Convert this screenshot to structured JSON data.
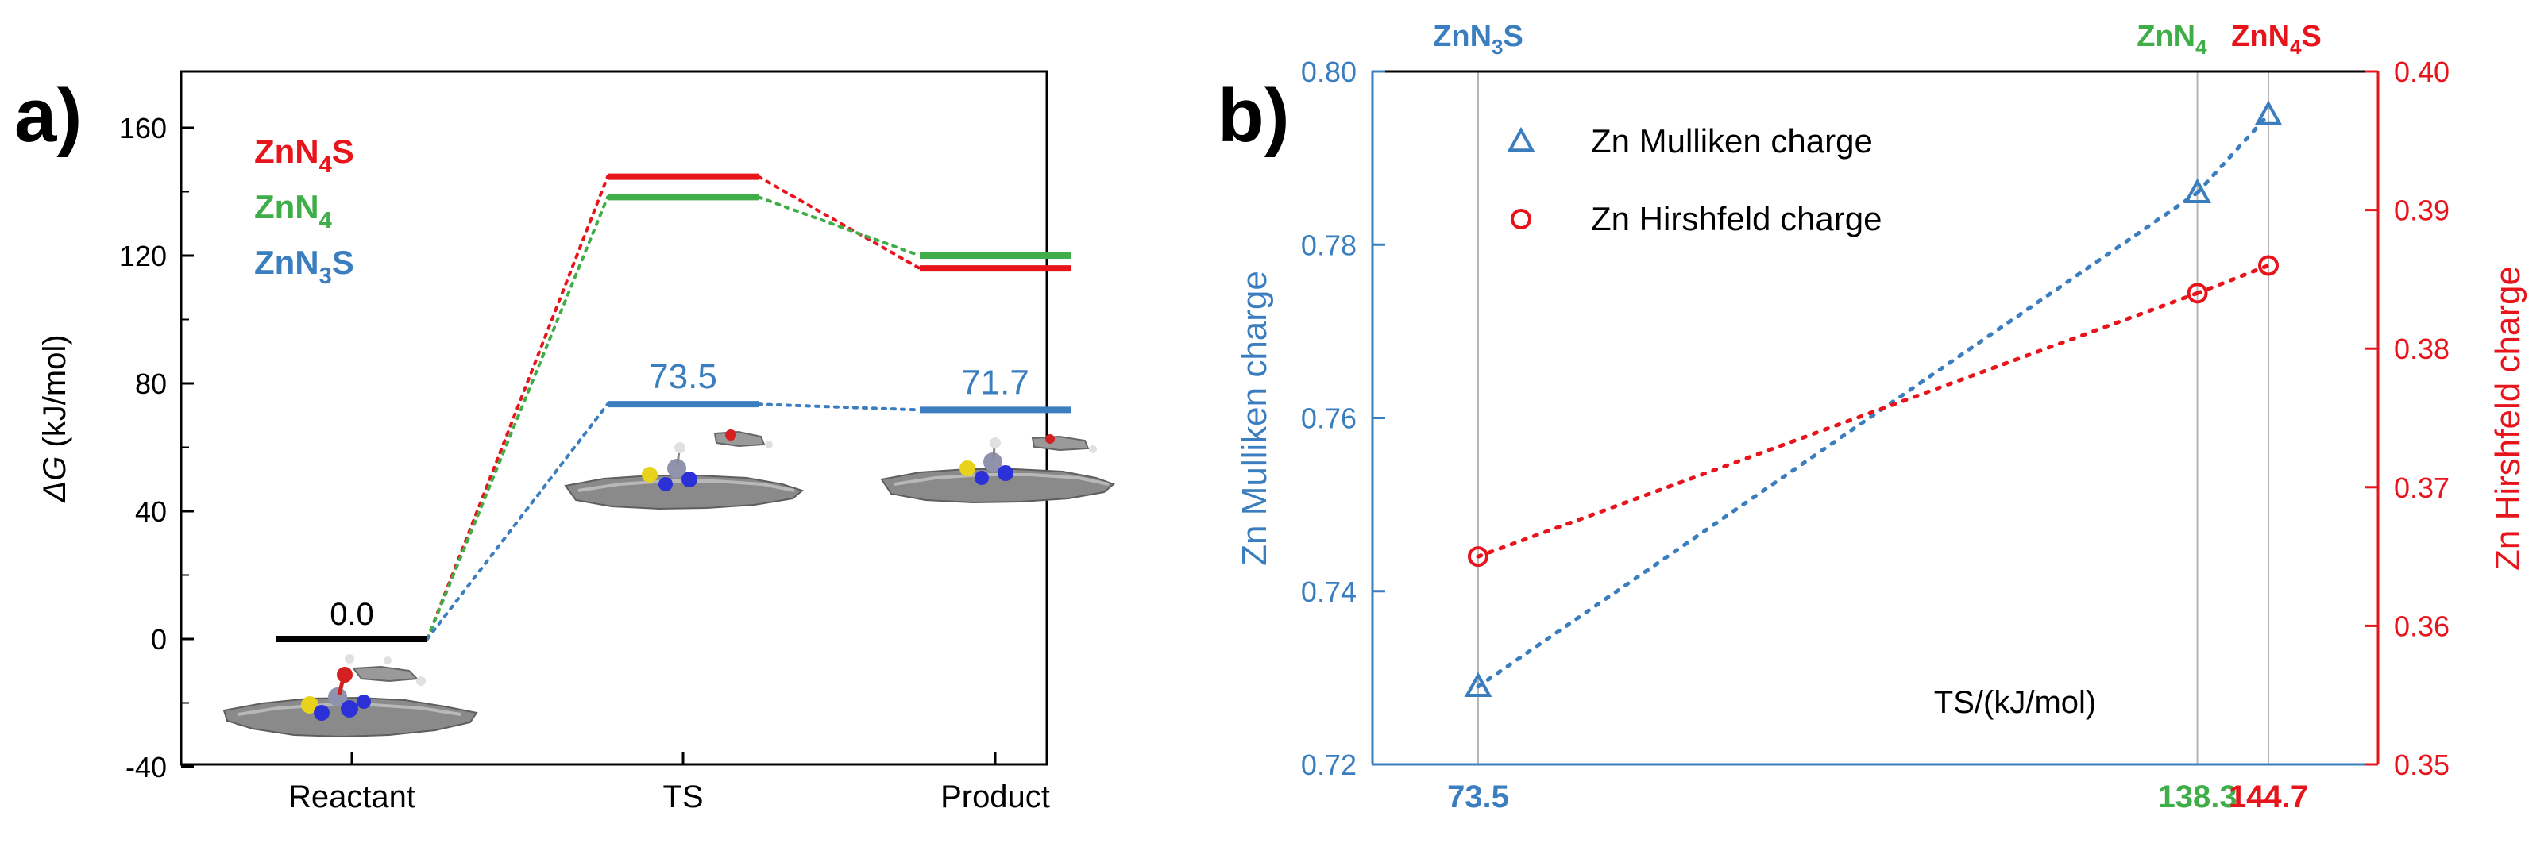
{
  "chart_data": [
    {
      "panel": "a)",
      "type": "line",
      "title": "",
      "xlabel": "",
      "ylabel_italic": "ΔG",
      "ylabel_units": " (kJ/mol)",
      "categories": [
        "Reactant",
        "TS",
        "Product"
      ],
      "ylim": [
        -40,
        180
      ],
      "yticks": [
        -40,
        0,
        40,
        80,
        120,
        160
      ],
      "series": [
        {
          "name": "ZnN4S",
          "label_main": "ZnN",
          "label_sub1": "4",
          "label_rest": "S",
          "color": "#e8141c",
          "values": [
            0,
            144.7,
            116
          ]
        },
        {
          "name": "ZnN4",
          "label_main": "ZnN",
          "label_sub1": "4",
          "label_rest": "",
          "color": "#3fae49",
          "values": [
            0,
            138.3,
            120
          ]
        },
        {
          "name": "ZnN3S",
          "label_main": "ZnN",
          "label_sub1": "3",
          "label_rest": "S",
          "color": "#3a7ebf",
          "values": [
            0,
            73.5,
            71.7
          ]
        }
      ],
      "reactant_level": {
        "value": 0,
        "label": "0.0",
        "color": "#000000"
      },
      "annotations": [
        {
          "text": "73.5",
          "series": "ZnN3S",
          "category": "TS"
        },
        {
          "text": "71.7",
          "series": "ZnN3S",
          "category": "Product"
        }
      ]
    },
    {
      "panel": "b)",
      "type": "scatter",
      "xlabel": "TS/(kJ/mol)",
      "ylabel_left": "Zn Mulliken charge",
      "ylabel_right": "Zn Hirshfeld charge",
      "x": [
        73.5,
        138.3,
        144.7
      ],
      "x_tick_labels": [
        "73.5",
        "138.3",
        "144.7"
      ],
      "top_labels": [
        {
          "main": "ZnN",
          "sub": "3",
          "rest": "S",
          "color": "#3a7ebf"
        },
        {
          "main": "ZnN",
          "sub": "4",
          "rest": "",
          "color": "#3fae49"
        },
        {
          "main": "ZnN",
          "sub": "4",
          "rest": "S",
          "color": "#e8141c"
        }
      ],
      "ylim_left": [
        0.72,
        0.8
      ],
      "yticks_left": [
        "0.72",
        "0.74",
        "0.76",
        "0.78",
        "0.80"
      ],
      "ylim_right": [
        0.35,
        0.4
      ],
      "yticks_right": [
        "0.35",
        "0.36",
        "0.37",
        "0.38",
        "0.39",
        "0.40"
      ],
      "left_color": "#3a7ebf",
      "right_color": "#e8141c",
      "series": [
        {
          "name": "Zn Mulliken charge",
          "axis": "left",
          "marker": "triangle",
          "color": "#3a7ebf",
          "values": [
            0.729,
            0.786,
            0.795
          ]
        },
        {
          "name": "Zn Hirshfeld charge",
          "axis": "right",
          "marker": "circle",
          "color": "#e8141c",
          "values": [
            0.365,
            0.384,
            0.386
          ]
        }
      ]
    }
  ]
}
